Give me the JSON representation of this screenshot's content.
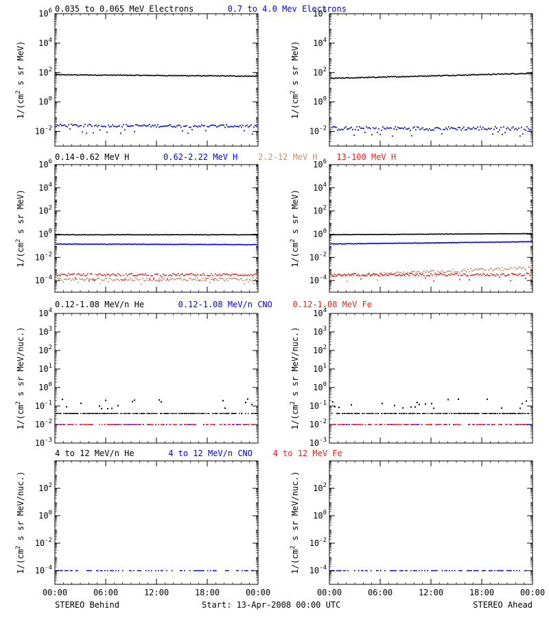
{
  "colors": {
    "black": "#000000",
    "blue": "#0000ee",
    "tan": "#cd8c6e",
    "red": "#ee1c1c"
  },
  "time_ticks": [
    "00:00",
    "06:00",
    "12:00",
    "18:00",
    "00:00"
  ],
  "footer": {
    "left": "STEREO Behind",
    "center": "Start: 13-Apr-2008 00:00 UTC",
    "right": "STEREO Ahead"
  },
  "chart_data": [
    {
      "id": "electrons",
      "type": "scatter",
      "ylabel_main": "1/(cm",
      "ylabel_sup": "2",
      "ylabel_rest": " s sr MeV)",
      "ylog": [
        -3,
        6
      ],
      "yticks": [
        {
          "exp": -2
        },
        {
          "exp": 0
        },
        {
          "exp": 2
        },
        {
          "exp": 4
        },
        {
          "exp": 6
        }
      ],
      "legend": [
        {
          "text": "0.035 to 0.065 MeV Electrons",
          "color": "black"
        },
        {
          "text": "0.7 to 4.0 Mev Electrons",
          "color": "blue"
        }
      ],
      "panels": {
        "behind": [
          {
            "color": "black",
            "style": "line",
            "log_start": 1.85,
            "log_end": 1.75,
            "noise": 0.06
          },
          {
            "color": "blue",
            "style": "dots",
            "log_start": -1.6,
            "log_end": -1.65,
            "noise": 0.18
          }
        ],
        "ahead": [
          {
            "color": "black",
            "style": "line",
            "log_start": 1.6,
            "log_end": 1.95,
            "noise": 0.07
          },
          {
            "color": "blue",
            "style": "dots",
            "log_start": -1.8,
            "log_end": -1.8,
            "noise": 0.25
          }
        ]
      }
    },
    {
      "id": "protons",
      "type": "scatter",
      "ylabel_main": "1/(cm",
      "ylabel_sup": "2",
      "ylabel_rest": " s sr MeV)",
      "ylog": [
        -5,
        6
      ],
      "yticks": [
        {
          "exp": -4
        },
        {
          "exp": -2
        },
        {
          "exp": 0
        },
        {
          "exp": 2
        },
        {
          "exp": 4
        },
        {
          "exp": 6
        }
      ],
      "legend": [
        {
          "text": "0.14-0.62 MeV H",
          "color": "black"
        },
        {
          "text": "0.62-2.22 MeV H",
          "color": "blue"
        },
        {
          "text": "2.2-12 MeV H",
          "color": "tan"
        },
        {
          "text": "13-100 MeV H",
          "color": "red"
        }
      ],
      "panels": {
        "behind": [
          {
            "color": "black",
            "style": "line",
            "log_start": -0.05,
            "log_end": -0.05,
            "noise": 0.04
          },
          {
            "color": "blue",
            "style": "line",
            "log_start": -0.85,
            "log_end": -0.9,
            "noise": 0.05
          },
          {
            "color": "tan",
            "style": "dots",
            "log_start": -3.9,
            "log_end": -3.9,
            "noise": 0.25
          },
          {
            "color": "red",
            "style": "dots",
            "log_start": -3.5,
            "log_end": -3.5,
            "noise": 0.2
          }
        ],
        "ahead": [
          {
            "color": "black",
            "style": "line",
            "log_start": -0.05,
            "log_end": 0.05,
            "noise": 0.04
          },
          {
            "color": "blue",
            "style": "line",
            "log_start": -0.85,
            "log_end": -0.65,
            "noise": 0.05
          },
          {
            "color": "tan",
            "style": "dots",
            "log_start": -3.6,
            "log_end": -2.9,
            "noise": 0.25
          },
          {
            "color": "red",
            "style": "dots",
            "log_start": -3.5,
            "log_end": -3.5,
            "noise": 0.2
          }
        ]
      }
    },
    {
      "id": "ions-low",
      "type": "scatter",
      "ylabel_main": "1/(cm",
      "ylabel_sup": "2",
      "ylabel_rest": " s sr MeV/nuc.)",
      "ylog": [
        -3,
        4
      ],
      "yticks": [
        {
          "exp": -3
        },
        {
          "exp": -2
        },
        {
          "exp": -1
        },
        {
          "exp": 0
        },
        {
          "exp": 1
        },
        {
          "exp": 2
        },
        {
          "exp": 3
        },
        {
          "exp": 4
        }
      ],
      "legend": [
        {
          "text": "0.12-1.08 MeV/n He",
          "color": "black"
        },
        {
          "text": "0.12-1.08 MeV/n CNO",
          "color": "blue"
        },
        {
          "text": "0.12-1.08 MeV Fe",
          "color": "red"
        }
      ],
      "panels": {
        "behind": [
          {
            "color": "black",
            "style": "level",
            "log_start": -1.4,
            "log_end": -1.4,
            "upper": -0.9
          },
          {
            "color": "blue",
            "style": "sparse",
            "log_start": -2.0,
            "log_end": -2.0
          },
          {
            "color": "red",
            "style": "sparse",
            "log_start": -2.0,
            "log_end": -2.0
          }
        ],
        "ahead": [
          {
            "color": "black",
            "style": "level",
            "log_start": -1.4,
            "log_end": -1.4,
            "upper": -0.9
          },
          {
            "color": "blue",
            "style": "sparse",
            "log_start": -2.0,
            "log_end": -2.0
          },
          {
            "color": "red",
            "style": "sparse",
            "log_start": -2.0,
            "log_end": -2.0
          }
        ]
      }
    },
    {
      "id": "ions-high",
      "type": "scatter",
      "ylabel_main": "1/(cm",
      "ylabel_sup": "2",
      "ylabel_rest": " s sr MeV/nuc.)",
      "ylog": [
        -5,
        4
      ],
      "yticks": [
        {
          "exp": -4
        },
        {
          "exp": -2
        },
        {
          "exp": 0
        },
        {
          "exp": 2
        }
      ],
      "legend": [
        {
          "text": "4 to 12 MeV/n He",
          "color": "black"
        },
        {
          "text": "4 to 12 MeV/n CNO",
          "color": "blue"
        },
        {
          "text": "4 to 12 MeV Fe",
          "color": "red"
        }
      ],
      "panels": {
        "behind": [
          {
            "color": "blue",
            "style": "sparse",
            "log_start": -4.0,
            "log_end": -4.0
          }
        ],
        "ahead": [
          {
            "color": "blue",
            "style": "sparse",
            "log_start": -4.0,
            "log_end": -4.0
          }
        ]
      }
    }
  ]
}
